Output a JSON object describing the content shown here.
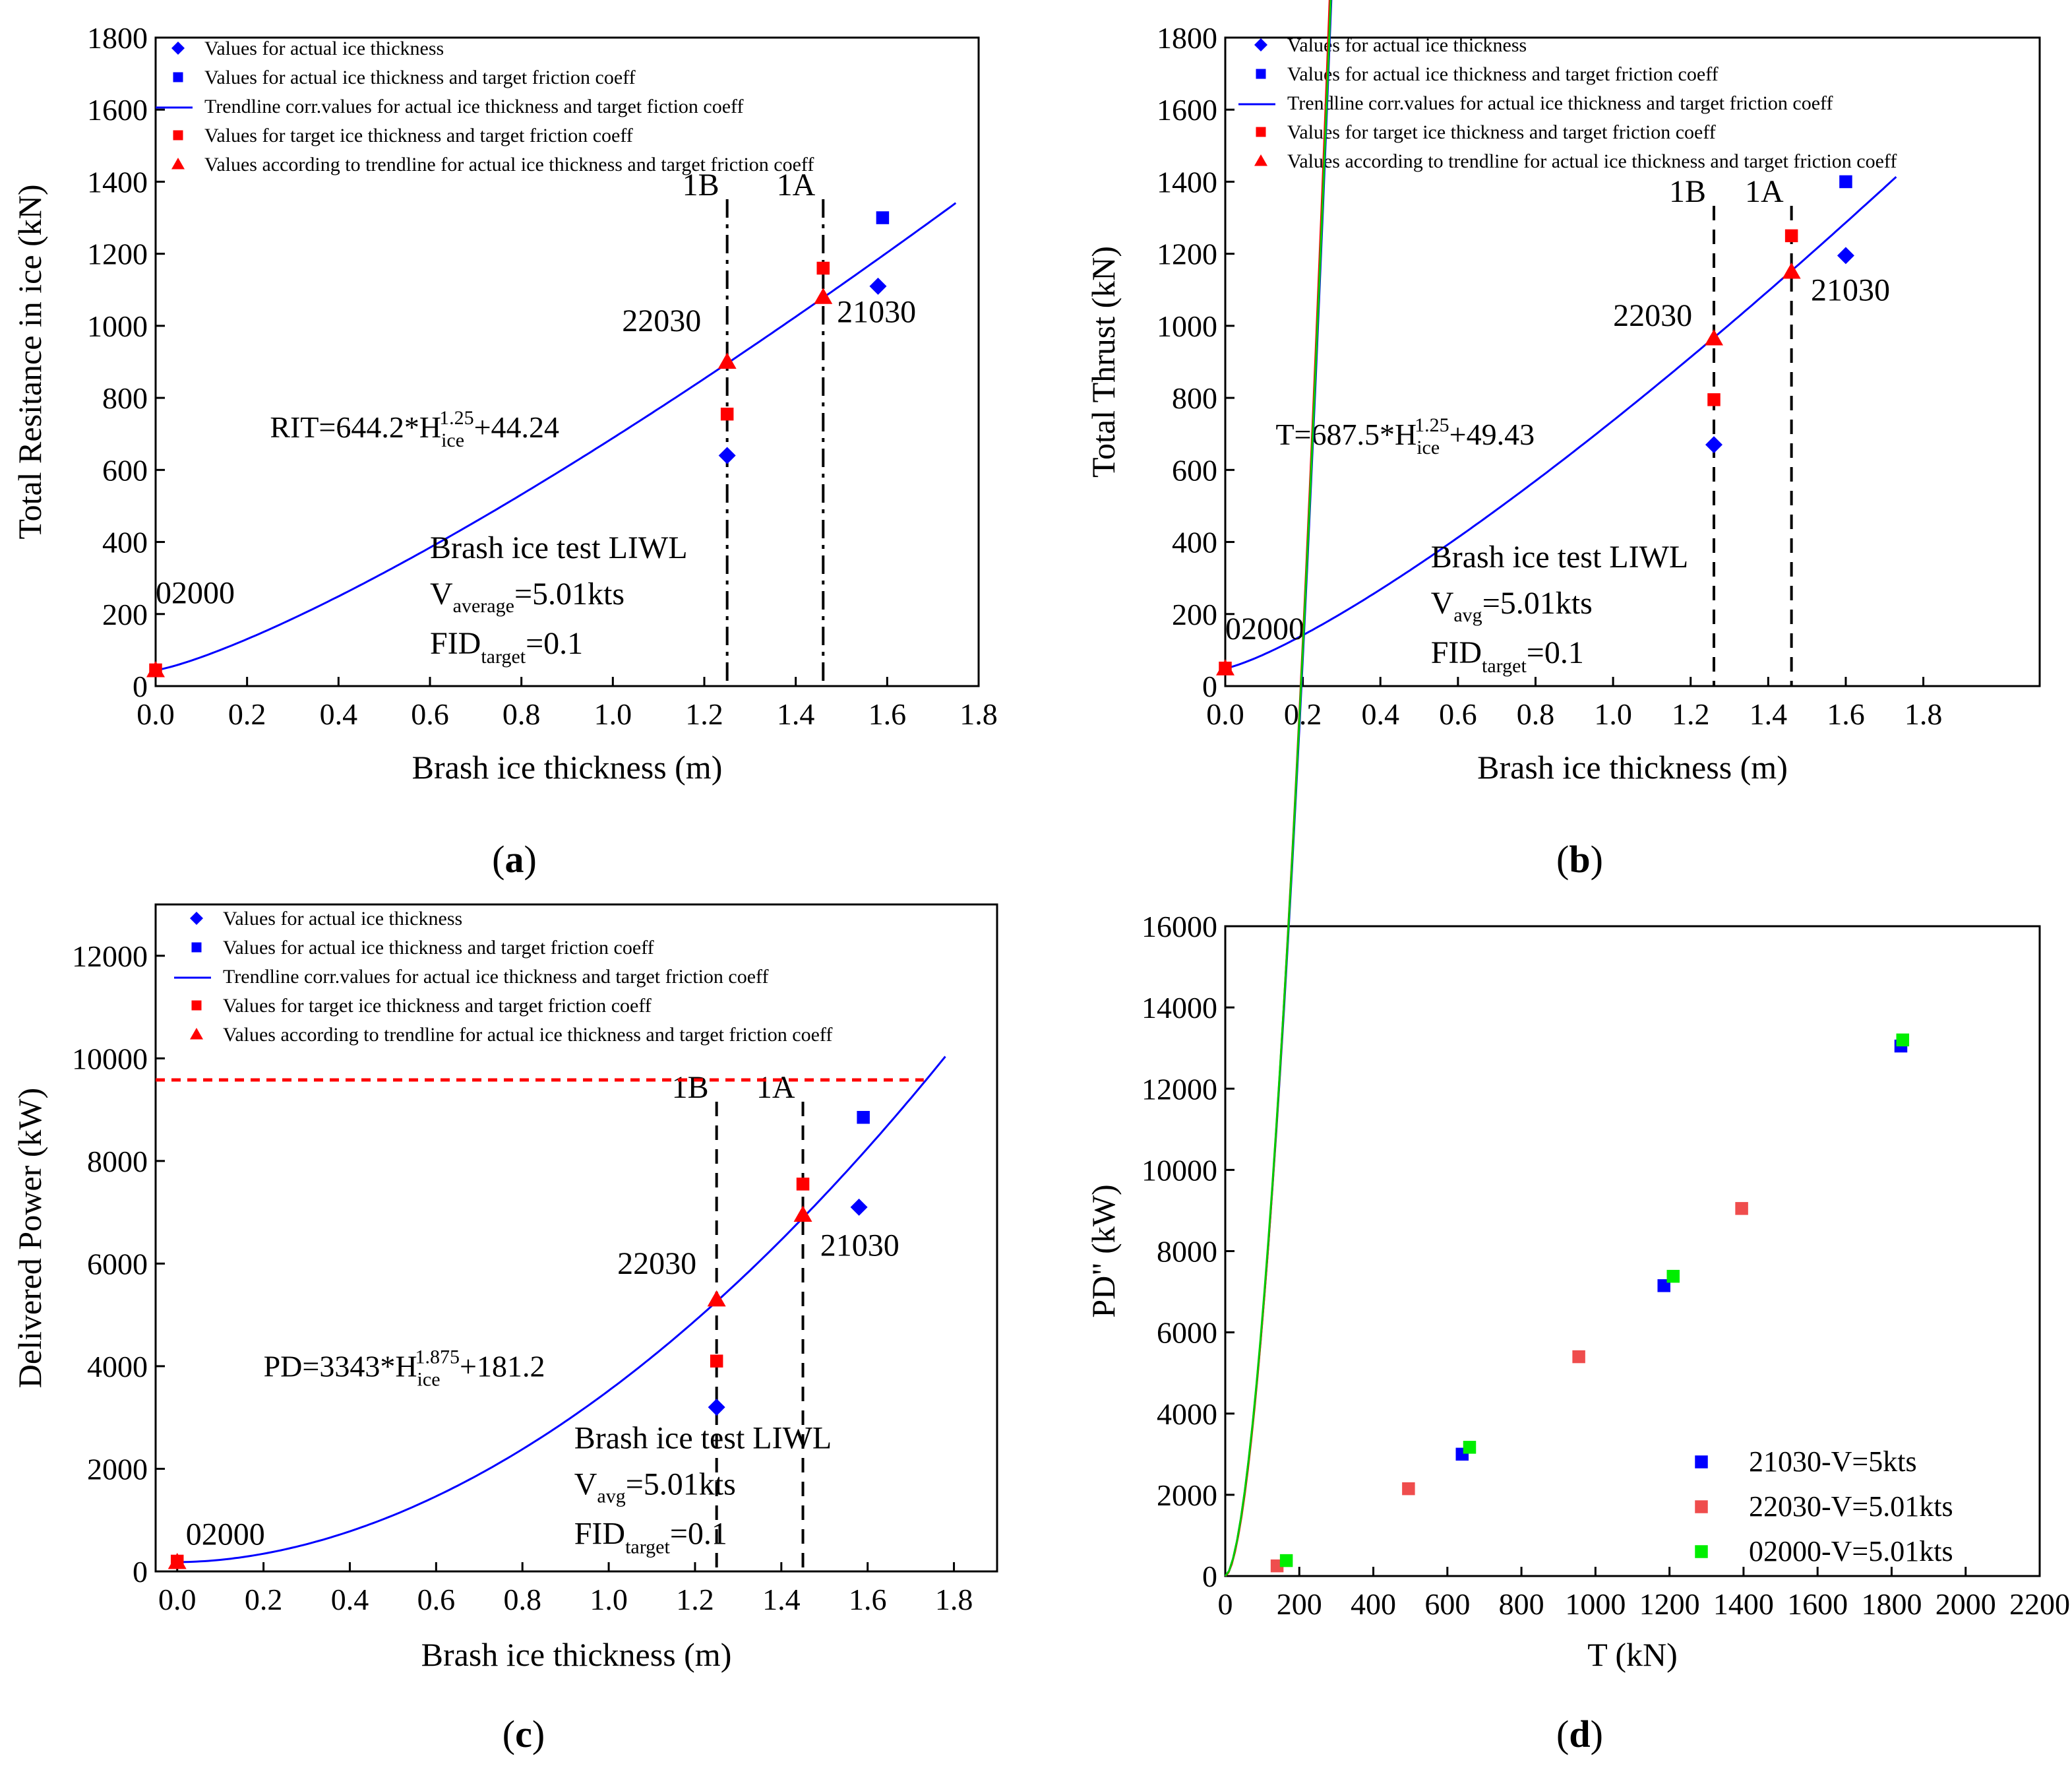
{
  "chart_data": [
    {
      "panel": "(a)",
      "panel_letter": "a",
      "type": "scatter",
      "xlabel": "Brash ice thickness (m)",
      "ylabel": "Total Resitance in ice (kN)",
      "xlim": [
        0,
        1.8
      ],
      "ylim": [
        0,
        1800
      ],
      "xticks": [
        "0.0",
        "0.2",
        "0.4",
        "0.6",
        "0.8",
        "1.0",
        "1.2",
        "1.4",
        "1.6",
        "1.8"
      ],
      "yticks": [
        "0",
        "200",
        "400",
        "600",
        "800",
        "1000",
        "1200",
        "1400",
        "1600",
        "1800"
      ],
      "legend": [
        "Values for actual ice thickness",
        "Values for actual ice thickness and target friction coeff",
        "Trendline corr.values for actual ice thickness and target fiction coeff",
        "Values for target ice thickness and target friction coeff",
        "Values according to trendline for actual ice thickness and target friction coeff"
      ],
      "trend": {
        "coef": 644.2,
        "exp": 1.25,
        "intercept": 44.24,
        "xmax": 1.75
      },
      "series": [
        {
          "name": "actual",
          "marker": "diamond",
          "color": "#0000ff",
          "points": [
            [
              1.25,
              640
            ],
            [
              1.58,
              1110
            ]
          ]
        },
        {
          "name": "actual_target_friction",
          "marker": "square",
          "color": "#0000ff",
          "points": [
            [
              1.59,
              1300
            ]
          ]
        },
        {
          "name": "target",
          "marker": "square",
          "color": "#ff0000",
          "points": [
            [
              1.25,
              755
            ],
            [
              1.46,
              1160
            ],
            [
              0.0,
              45
            ]
          ]
        },
        {
          "name": "trendline_values",
          "marker": "triangle",
          "color": "#ff0000",
          "points": [
            [
              1.25,
              900
            ],
            [
              1.46,
              1080
            ],
            [
              0.0,
              44
            ]
          ]
        }
      ],
      "vlines": [
        {
          "x": 1.25,
          "label": "1B",
          "style": "dashdot"
        },
        {
          "x": 1.46,
          "label": "1A",
          "style": "dashdot"
        }
      ],
      "labels": [
        {
          "text": "02000",
          "x": 0.0,
          "y": 230
        },
        {
          "text": "22030",
          "x": 1.02,
          "y": 985
        },
        {
          "text": "21030",
          "x": 1.49,
          "y": 1010
        }
      ],
      "equation": {
        "lhs": "RIT=644.2*H",
        "sub": "ice",
        "sup": "1.25",
        "tail": "+44.24",
        "x": 0.25,
        "y": 690
      },
      "info": {
        "line1": "Brash ice test LIWL",
        "v_main": "V",
        "v_sub": "average",
        "v_tail": "=5.01kts",
        "f_main": "FID",
        "f_sub": "target",
        "f_tail": "=0.1",
        "x": 0.6,
        "y": 355
      }
    },
    {
      "panel": "(b)",
      "panel_letter": "b",
      "type": "scatter",
      "xlabel": "Brash ice thickness (m)",
      "ylabel": "Total Thrust (kN)",
      "xlim": [
        0,
        2.1
      ],
      "ylim": [
        0,
        1800
      ],
      "xticks": [
        "0.0",
        "0.2",
        "0.4",
        "0.6",
        "0.8",
        "1.0",
        "1.2",
        "1.4",
        "1.6",
        "1.8"
      ],
      "yticks": [
        "0",
        "200",
        "400",
        "600",
        "800",
        "1000",
        "1200",
        "1400",
        "1600",
        "1800"
      ],
      "legend": [
        "Values for actual ice thickness",
        "Values for actual ice thickness and target friction coeff",
        "Trendline corr.values for actual ice thickness and target friction coeff",
        "Values for target ice thickness and target friction coeff",
        "Values according to trendline for actual ice thickness and target friction coeff"
      ],
      "trend": {
        "coef": 687.5,
        "exp": 1.25,
        "intercept": 49.43,
        "xmax": 1.73
      },
      "series": [
        {
          "name": "actual",
          "marker": "diamond",
          "color": "#0000ff",
          "points": [
            [
              1.26,
              670
            ],
            [
              1.6,
              1195
            ]
          ]
        },
        {
          "name": "actual_target_friction",
          "marker": "square",
          "color": "#0000ff",
          "points": [
            [
              1.6,
              1400
            ]
          ]
        },
        {
          "name": "target",
          "marker": "square",
          "color": "#ff0000",
          "points": [
            [
              1.26,
              795
            ],
            [
              1.46,
              1250
            ],
            [
              0.0,
              50
            ]
          ]
        },
        {
          "name": "trendline_values",
          "marker": "triangle",
          "color": "#ff0000",
          "points": [
            [
              1.26,
              965
            ],
            [
              1.46,
              1150
            ],
            [
              0.0,
              49
            ]
          ]
        }
      ],
      "vlines": [
        {
          "x": 1.26,
          "label": "1B",
          "style": "dash"
        },
        {
          "x": 1.46,
          "label": "1A",
          "style": "dash"
        }
      ],
      "labels": [
        {
          "text": "02000",
          "x": 0.0,
          "y": 130
        },
        {
          "text": "22030",
          "x": 1.0,
          "y": 1000
        },
        {
          "text": "21030",
          "x": 1.51,
          "y": 1070
        }
      ],
      "equation": {
        "lhs": "T=687.5*H",
        "sub": "ice",
        "sup": "1.25",
        "tail": "+49.43",
        "x": 0.13,
        "y": 670
      },
      "info": {
        "line1": "Brash ice test LIWL",
        "v_main": "V",
        "v_sub": "avg",
        "v_tail": "=5.01kts",
        "f_main": "FID",
        "f_sub": "target",
        "f_tail": "=0.1",
        "x": 0.53,
        "y": 330
      }
    },
    {
      "panel": "(c)",
      "panel_letter": "c",
      "type": "scatter",
      "xlabel": "Brash ice thickness (m)",
      "ylabel": "Delivered Power (kW)",
      "xlim": [
        -0.05,
        1.9
      ],
      "ylim": [
        0,
        13000
      ],
      "xticks": [
        "0.0",
        "0.2",
        "0.4",
        "0.6",
        "0.8",
        "1.0",
        "1.2",
        "1.4",
        "1.6",
        "1.8"
      ],
      "yticks": [
        "0",
        "2000",
        "4000",
        "6000",
        "8000",
        "10000",
        "12000"
      ],
      "legend": [
        "Values for actual ice thickness",
        "Values for actual ice thickness and target friction coeff",
        "Trendline corr.values for actual ice thickness and target friction coeff",
        "Values for target ice thickness and target friction coeff",
        "Values according to trendline for actual ice thickness and target friction coeff"
      ],
      "trend": {
        "coef": 3343,
        "exp": 1.875,
        "intercept": 181.2,
        "xmax": 1.78
      },
      "series": [
        {
          "name": "actual",
          "marker": "diamond",
          "color": "#0000ff",
          "points": [
            [
              1.25,
              3200
            ],
            [
              1.58,
              7100
            ]
          ]
        },
        {
          "name": "actual_target_friction",
          "marker": "square",
          "color": "#0000ff",
          "points": [
            [
              1.59,
              8850
            ]
          ]
        },
        {
          "name": "target",
          "marker": "square",
          "color": "#ff0000",
          "points": [
            [
              1.25,
              4100
            ],
            [
              1.45,
              7550
            ],
            [
              0.0,
              200
            ]
          ]
        },
        {
          "name": "trendline_values",
          "marker": "triangle",
          "color": "#ff0000",
          "points": [
            [
              1.25,
              5300
            ],
            [
              1.45,
              6950
            ],
            [
              0.0,
              181
            ]
          ]
        }
      ],
      "vlines": [
        {
          "x": 1.25,
          "label": "1B",
          "style": "dash"
        },
        {
          "x": 1.45,
          "label": "1A",
          "style": "dash"
        }
      ],
      "hline": {
        "y": 9580,
        "style": "dotted",
        "color": "#ff0000",
        "xmin": -0.05,
        "xmax": 1.73
      },
      "labels": [
        {
          "text": "02000",
          "x": 0.02,
          "y": 520
        },
        {
          "text": "22030",
          "x": 1.02,
          "y": 5800
        },
        {
          "text": "21030",
          "x": 1.49,
          "y": 6150
        }
      ],
      "equation": {
        "lhs": "PD=3343*H",
        "sub": "ice",
        "sup": "1.875",
        "tail": "+181.2",
        "x": 0.2,
        "y": 3800
      },
      "info": {
        "line1": "Brash ice test LIWL",
        "v_main": "V",
        "v_sub": "avg",
        "v_tail": "=5.01kts",
        "f_main": "FID",
        "f_sub": "target",
        "f_tail": "=0.1",
        "x": 0.92,
        "y": 2400
      }
    },
    {
      "panel": "(d)",
      "panel_letter": "d",
      "type": "scatter",
      "xlabel": "T (kN)",
      "ylabel": "PD\" (kW)",
      "xlim": [
        0,
        2200
      ],
      "ylim": [
        0,
        16000
      ],
      "xticks": [
        "0",
        "200",
        "400",
        "600",
        "800",
        "1000",
        "1200",
        "1400",
        "1600",
        "1800",
        "2000",
        "2200"
      ],
      "yticks": [
        "0",
        "2000",
        "4000",
        "6000",
        "8000",
        "10000",
        "12000",
        "14000",
        "16000"
      ],
      "series": [
        {
          "name": "21030-V=5kts",
          "marker": "square",
          "color": "#0000ff",
          "points": [
            [
              640,
              3000
            ],
            [
              1185,
              7150
            ],
            [
              1825,
              13050
            ]
          ]
        },
        {
          "name": "22030-V=5.01kts",
          "marker": "square",
          "color": "#ef4d4d",
          "points": [
            [
              140,
              250
            ],
            [
              495,
              2150
            ],
            [
              955,
              5400
            ],
            [
              1395,
              9050
            ]
          ]
        },
        {
          "name": "02000-V=5.01kts",
          "marker": "square",
          "color": "#00ee00",
          "points": [
            [
              165,
              380
            ],
            [
              660,
              3170
            ],
            [
              1210,
              7380
            ],
            [
              1830,
              13200
            ]
          ]
        }
      ],
      "curves": [
        {
          "color": "#0000ff",
          "a": 2.18,
          "b": 1.73,
          "x0": 0,
          "x1": 2120
        },
        {
          "color": "#ff0000",
          "a": 1.89,
          "b": 1.76,
          "x0": 0,
          "x1": 1750
        },
        {
          "color": "#00cc00",
          "a": 2.2,
          "b": 1.73,
          "x0": 0,
          "x1": 2110
        }
      ]
    }
  ]
}
